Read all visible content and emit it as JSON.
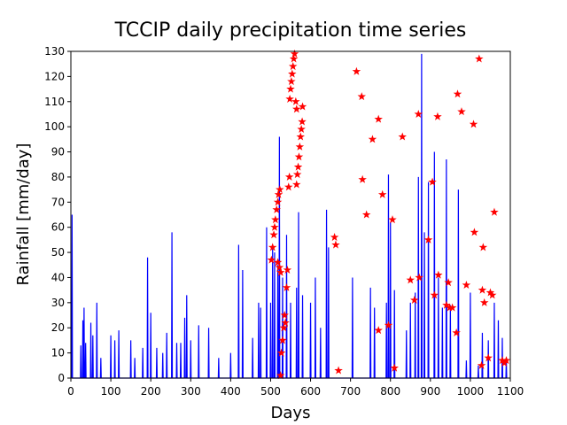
{
  "chart_data": {
    "type": "line",
    "title": "TCCIP daily precipitation time series",
    "x_label": "Days",
    "y_label": "Rainfall [mm/day]",
    "xlim": [
      0,
      1100
    ],
    "ylim": [
      0,
      130
    ],
    "xticks": [
      0,
      100,
      200,
      300,
      400,
      500,
      600,
      700,
      800,
      900,
      1000,
      1100
    ],
    "yticks": [
      0,
      10,
      20,
      30,
      40,
      50,
      60,
      70,
      80,
      90,
      100,
      110,
      120,
      130
    ],
    "series": [
      {
        "color": "#0000ff",
        "x": [
          2,
          3,
          4,
          24,
          25,
          26,
          29,
          30,
          31,
          32,
          33,
          34,
          36,
          37,
          38,
          49,
          50,
          51,
          54,
          55,
          56,
          64,
          65,
          66,
          74,
          75,
          76,
          99,
          100,
          101,
          109,
          110,
          111,
          119,
          120,
          121,
          149,
          150,
          151,
          159,
          160,
          161,
          179,
          180,
          181,
          191,
          192,
          193,
          199,
          200,
          201,
          214,
          215,
          216,
          229,
          230,
          231,
          239,
          240,
          241,
          252,
          253,
          254,
          264,
          265,
          266,
          274,
          275,
          276,
          284,
          285,
          286,
          289,
          290,
          291,
          299,
          300,
          301,
          319,
          320,
          321,
          344,
          345,
          346,
          369,
          370,
          371,
          399,
          400,
          401,
          419,
          420,
          421,
          429,
          430,
          431,
          454,
          455,
          456,
          469,
          470,
          471,
          474,
          475,
          476,
          489,
          490,
          491,
          499,
          500,
          501,
          504,
          505,
          506,
          509,
          510,
          511,
          517,
          518,
          519,
          521,
          522,
          523,
          529,
          530,
          531,
          539,
          540,
          541,
          549,
          550,
          551,
          564,
          565,
          566,
          569,
          570,
          571,
          579,
          580,
          581,
          599,
          600,
          601,
          611,
          612,
          613,
          624,
          625,
          626,
          639,
          640,
          641,
          644,
          645,
          646,
          704,
          705,
          706,
          749,
          750,
          751,
          759,
          760,
          761,
          789,
          790,
          791,
          794,
          795,
          796,
          799,
          800,
          801,
          809,
          810,
          811,
          839,
          840,
          841,
          849,
          850,
          851,
          861,
          862,
          863,
          869,
          870,
          871,
          877,
          878,
          879,
          884,
          885,
          886,
          894,
          895,
          896,
          909,
          910,
          911,
          919,
          920,
          921,
          929,
          930,
          931,
          939,
          940,
          941,
          949,
          950,
          951,
          969,
          970,
          971,
          989,
          990,
          991,
          999,
          1000,
          1001,
          1019,
          1020,
          1021,
          1029,
          1030,
          1031,
          1044,
          1045,
          1046,
          1059,
          1060,
          1061,
          1069,
          1070,
          1071,
          1079,
          1080,
          1081,
          1089,
          1090,
          1091
        ],
        "values": [
          0,
          65,
          0,
          0,
          13,
          0,
          0,
          23,
          0,
          0,
          28,
          0,
          0,
          14,
          0,
          0,
          22,
          0,
          0,
          17,
          0,
          0,
          30,
          0,
          0,
          8,
          0,
          0,
          17,
          0,
          0,
          15,
          0,
          0,
          19,
          0,
          0,
          15,
          0,
          0,
          8,
          0,
          0,
          12,
          0,
          0,
          48,
          0,
          0,
          26,
          0,
          0,
          12,
          0,
          0,
          10,
          0,
          0,
          18,
          0,
          0,
          58,
          0,
          0,
          14,
          0,
          0,
          14,
          0,
          0,
          24,
          0,
          0,
          33,
          0,
          0,
          15,
          0,
          0,
          21,
          0,
          0,
          20,
          0,
          0,
          8,
          0,
          0,
          10,
          0,
          0,
          53,
          0,
          0,
          43,
          0,
          0,
          16,
          0,
          0,
          30,
          0,
          0,
          28,
          0,
          0,
          60,
          0,
          0,
          30,
          0,
          0,
          53,
          0,
          0,
          50,
          0,
          0,
          45,
          0,
          0,
          96,
          0,
          0,
          40,
          0,
          0,
          57,
          0,
          0,
          30,
          0,
          0,
          36,
          0,
          0,
          66,
          0,
          0,
          33,
          0,
          0,
          30,
          0,
          0,
          40,
          0,
          0,
          20,
          0,
          0,
          67,
          0,
          0,
          52,
          0,
          0,
          40,
          0,
          0,
          36,
          0,
          0,
          28,
          0,
          0,
          30,
          0,
          0,
          81,
          0,
          0,
          62,
          0,
          0,
          35,
          0,
          0,
          19,
          0,
          0,
          30,
          0,
          0,
          34,
          0,
          0,
          80,
          0,
          0,
          129,
          0,
          0,
          58,
          0,
          0,
          78,
          0,
          0,
          90,
          0,
          0,
          40,
          0,
          0,
          28,
          0,
          0,
          87,
          0,
          0,
          29,
          0,
          0,
          75,
          0,
          0,
          7,
          0,
          0,
          34,
          0,
          0,
          5,
          0,
          0,
          18,
          0,
          0,
          15,
          0,
          0,
          30,
          0,
          0,
          23,
          0,
          0,
          16,
          0,
          0,
          8,
          0
        ]
      },
      {
        "color": "#ff0000",
        "marker": "star",
        "x": [
          502,
          505,
          508,
          510,
          512,
          515,
          518,
          520,
          523,
          518,
          522,
          525,
          527,
          530,
          533,
          535,
          537,
          540,
          542,
          545,
          547,
          548,
          550,
          552,
          554,
          556,
          558,
          560,
          565,
          567,
          569,
          571,
          573,
          575,
          577,
          579,
          580,
          563,
          565,
          525,
          660,
          663,
          670,
          715,
          728,
          730,
          740,
          755,
          770,
          770,
          780,
          795,
          805,
          810,
          830,
          850,
          860,
          870,
          872,
          895,
          905,
          910,
          918,
          920,
          940,
          945,
          948,
          955,
          965,
          968,
          978,
          990,
          1008,
          1010,
          1022,
          1028,
          1030,
          1032,
          1035,
          1045,
          1050,
          1055,
          1060,
          1080,
          1085,
          1090
        ],
        "values": [
          47,
          52,
          57,
          60,
          63,
          67,
          70,
          73,
          75,
          46,
          44,
          42,
          10,
          15,
          20,
          25,
          22,
          36,
          43,
          76,
          80,
          111,
          115,
          118,
          121,
          124,
          127,
          129,
          77,
          81,
          84,
          88,
          92,
          96,
          99,
          102,
          108,
          110,
          107,
          1,
          56,
          53,
          3,
          122,
          112,
          79,
          65,
          95,
          103,
          19,
          73,
          21,
          63,
          4,
          96,
          39,
          31,
          105,
          40,
          55,
          78,
          33,
          104,
          41,
          29,
          38,
          28,
          28,
          18,
          113,
          106,
          37,
          101,
          58,
          127,
          5,
          35,
          52,
          30,
          8,
          34,
          33,
          66,
          7,
          6,
          7
        ]
      }
    ]
  }
}
